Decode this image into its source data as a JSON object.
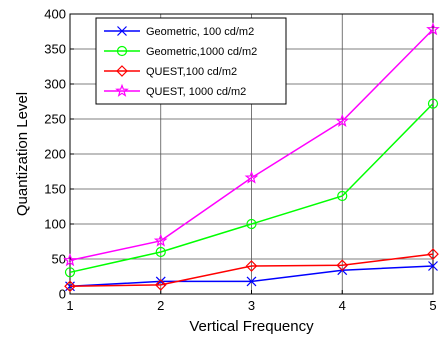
{
  "chart_data": {
    "type": "line",
    "xlabel": "Vertical Frequency",
    "ylabel": "Quantization Level",
    "xlim": [
      1,
      5
    ],
    "ylim": [
      0,
      400
    ],
    "xticks": [
      1,
      2,
      3,
      4,
      5
    ],
    "yticks": [
      0,
      50,
      100,
      150,
      200,
      250,
      300,
      350,
      400
    ],
    "xtick_labels": [
      "1",
      "2",
      "3",
      "4",
      "5"
    ],
    "ytick_labels": [
      "0",
      "50",
      "100",
      "150",
      "200",
      "250",
      "300",
      "350",
      "400"
    ],
    "grid": true,
    "legend_position": "top-left",
    "x": [
      1,
      2,
      3,
      4,
      5
    ],
    "series": [
      {
        "name": "Geometric, 100 cd/m2",
        "values": [
          11,
          18,
          18,
          34,
          40
        ],
        "color": "#0000ff",
        "marker": "x"
      },
      {
        "name": "Geometric,1000 cd/m2",
        "values": [
          31,
          60,
          100,
          140,
          272
        ],
        "color": "#00ff00",
        "marker": "circle"
      },
      {
        "name": "QUEST,100 cd/m2",
        "values": [
          11,
          13,
          40,
          41,
          57
        ],
        "color": "#ff0000",
        "marker": "diamond"
      },
      {
        "name": "QUEST, 1000 cd/m2",
        "values": [
          48,
          76,
          166,
          247,
          378
        ],
        "color": "#ff00ff",
        "marker": "star"
      }
    ]
  }
}
